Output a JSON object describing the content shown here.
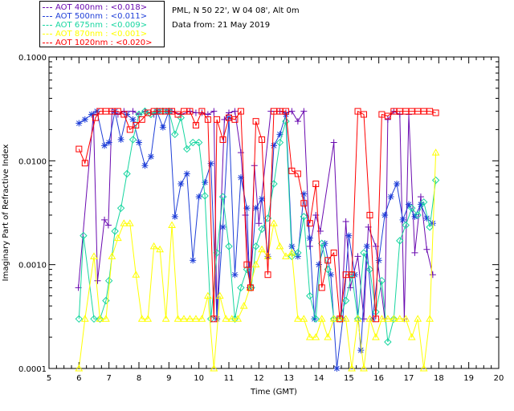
{
  "header": {
    "location": "PML, N 50 22', W 04 08', Alt 0m",
    "date_line": "Data from: 21 May 2019"
  },
  "legend": [
    {
      "label": "AOT  400nm : <0.018>",
      "color": "#6a0ab0"
    },
    {
      "label": "AOT  500nm : <0.011>",
      "color": "#1f3fd8"
    },
    {
      "label": "AOT  675nm : <0.009>",
      "color": "#17d6a0"
    },
    {
      "label": "AOT  870nm : <0.001>",
      "color": "#ffff00"
    },
    {
      "label": "AOT 1020nm : <0.020>",
      "color": "#ff0000"
    }
  ],
  "chart_data": {
    "type": "line",
    "xlabel": "Time (GMT)",
    "ylabel": "Imaginary Part of Refractive Index",
    "xlim": [
      5,
      20
    ],
    "ylim": [
      0.0001,
      0.1
    ],
    "yscale": "log",
    "xticks": [
      5,
      6,
      7,
      8,
      9,
      10,
      11,
      12,
      13,
      14,
      15,
      16,
      17,
      18,
      19,
      20
    ],
    "yticks": [
      0.0001,
      0.001,
      0.01,
      0.1
    ],
    "ytick_labels": [
      "0.0001",
      "0.0010",
      "0.0100",
      "0.1000"
    ],
    "series": [
      {
        "name": "400nm",
        "marker": "plus",
        "x": [
          5.98,
          6.48,
          6.62,
          6.85,
          6.98,
          7.1,
          7.3,
          7.5,
          7.8,
          8.0,
          8.2,
          8.5,
          8.7,
          8.9,
          9.1,
          9.4,
          9.7,
          9.9,
          10.1,
          10.3,
          10.5,
          10.6,
          10.85,
          11.0,
          11.2,
          11.4,
          11.55,
          11.7,
          11.85,
          12.0,
          12.4,
          12.7,
          12.9,
          13.1,
          13.3,
          13.5,
          13.7,
          13.9,
          14.05,
          14.5,
          14.75,
          14.9,
          15.05,
          15.3,
          15.5,
          15.65,
          15.9,
          16.2,
          16.3,
          16.5,
          16.7,
          16.85,
          17.0,
          17.2,
          17.4,
          17.6,
          17.8
        ],
        "y": [
          0.0006,
          0.028,
          0.0007,
          0.0027,
          0.0024,
          0.03,
          0.028,
          0.03,
          0.03,
          0.028,
          0.03,
          0.028,
          0.03,
          0.03,
          0.03,
          0.028,
          0.03,
          0.029,
          0.029,
          0.028,
          0.03,
          0.0003,
          0.025,
          0.029,
          0.03,
          0.012,
          0.003,
          0.0006,
          0.009,
          0.0025,
          0.03,
          0.03,
          0.029,
          0.03,
          0.024,
          0.03,
          0.0015,
          0.003,
          0.0021,
          0.015,
          0.0003,
          0.0026,
          0.0006,
          0.0012,
          0.0003,
          0.0023,
          0.0015,
          0.0003,
          0.025,
          0.03,
          0.028,
          0.0003,
          0.028,
          0.0013,
          0.0045,
          0.0014,
          0.0008
        ]
      },
      {
        "name": "500nm",
        "marker": "asterisk",
        "x": [
          6.0,
          6.2,
          6.42,
          6.6,
          6.85,
          7.0,
          7.2,
          7.4,
          7.6,
          7.8,
          8.0,
          8.2,
          8.4,
          8.6,
          8.8,
          9.0,
          9.2,
          9.4,
          9.6,
          9.8,
          10.0,
          10.2,
          10.4,
          10.6,
          10.8,
          11.0,
          11.2,
          11.4,
          11.6,
          11.7,
          11.9,
          12.1,
          12.3,
          12.5,
          12.7,
          12.9,
          13.1,
          13.3,
          13.5,
          13.7,
          13.85,
          14.0,
          14.2,
          14.4,
          14.6,
          14.8,
          15.0,
          15.2,
          15.4,
          15.6,
          15.8,
          16.0,
          16.2,
          16.4,
          16.6,
          16.8,
          17.0,
          17.2,
          17.4,
          17.6,
          17.8
        ],
        "y": [
          0.023,
          0.025,
          0.028,
          0.03,
          0.014,
          0.015,
          0.03,
          0.016,
          0.028,
          0.025,
          0.015,
          0.009,
          0.011,
          0.03,
          0.021,
          0.03,
          0.0029,
          0.006,
          0.0075,
          0.0011,
          0.0045,
          0.0062,
          0.0094,
          0.0003,
          0.0023,
          0.026,
          0.0008,
          0.0069,
          0.0035,
          0.0006,
          0.0035,
          0.0043,
          0.0012,
          0.014,
          0.018,
          0.028,
          0.0015,
          0.0012,
          0.0048,
          0.0018,
          0.0003,
          0.001,
          0.0016,
          0.0008,
          0.0001,
          0.0003,
          0.0019,
          0.0008,
          0.00015,
          0.0015,
          0.0003,
          0.0011,
          0.003,
          0.0045,
          0.006,
          0.0027,
          0.0038,
          0.0029,
          0.0038,
          0.0028,
          0.0025
        ]
      },
      {
        "name": "675nm",
        "marker": "diamond",
        "x": [
          6.0,
          6.15,
          6.5,
          6.7,
          6.9,
          7.0,
          7.2,
          7.4,
          7.6,
          7.8,
          8.0,
          8.2,
          8.4,
          8.6,
          8.8,
          9.0,
          9.2,
          9.4,
          9.6,
          9.8,
          10.0,
          10.2,
          10.4,
          10.6,
          10.8,
          11.0,
          11.2,
          11.4,
          11.6,
          11.75,
          11.9,
          12.1,
          12.3,
          12.5,
          12.7,
          12.9,
          13.1,
          13.3,
          13.5,
          13.7,
          13.9,
          14.1,
          14.3,
          14.5,
          14.7,
          14.9,
          15.1,
          15.3,
          15.5,
          15.7,
          15.9,
          16.1,
          16.3,
          16.5,
          16.7,
          16.9,
          17.1,
          17.3,
          17.5,
          17.7,
          17.9
        ],
        "y": [
          0.0003,
          0.0019,
          0.0003,
          0.0003,
          0.00045,
          0.0007,
          0.0021,
          0.0035,
          0.0075,
          0.016,
          0.028,
          0.03,
          0.028,
          0.03,
          0.03,
          0.03,
          0.018,
          0.026,
          0.013,
          0.015,
          0.015,
          0.0046,
          0.0003,
          0.0013,
          0.0045,
          0.0015,
          0.0003,
          0.0006,
          0.0009,
          0.0006,
          0.0015,
          0.0022,
          0.0028,
          0.006,
          0.015,
          0.024,
          0.0012,
          0.0013,
          0.0029,
          0.0005,
          0.0003,
          0.0016,
          0.0009,
          0.0003,
          0.0003,
          0.00045,
          0.0008,
          0.0003,
          0.0013,
          0.0009,
          0.00035,
          0.0007,
          0.00018,
          0.0003,
          0.0017,
          0.0024,
          0.0035,
          0.003,
          0.004,
          0.0023,
          0.0065
        ]
      },
      {
        "name": "870nm",
        "marker": "triangle",
        "x": [
          6.0,
          6.2,
          6.5,
          6.7,
          6.9,
          7.1,
          7.3,
          7.5,
          7.7,
          7.9,
          8.1,
          8.3,
          8.5,
          8.7,
          8.9,
          9.1,
          9.3,
          9.5,
          9.7,
          9.9,
          10.1,
          10.3,
          10.5,
          10.7,
          10.9,
          11.1,
          11.3,
          11.5,
          11.7,
          11.9,
          12.1,
          12.3,
          12.5,
          12.7,
          12.9,
          13.1,
          13.3,
          13.5,
          13.7,
          13.9,
          14.1,
          14.3,
          14.5,
          14.7,
          14.9,
          15.1,
          15.3,
          15.5,
          15.7,
          15.9,
          16.1,
          16.3,
          16.5,
          16.7,
          16.9,
          17.1,
          17.3,
          17.5,
          17.7,
          17.9
        ],
        "y": [
          0.0001,
          0.0003,
          0.0012,
          0.0003,
          0.0003,
          0.0012,
          0.0018,
          0.0025,
          0.0025,
          0.0008,
          0.0003,
          0.0003,
          0.0015,
          0.0014,
          0.0003,
          0.0024,
          0.0003,
          0.0003,
          0.0003,
          0.0003,
          0.0003,
          0.0005,
          0.0001,
          0.0005,
          0.0003,
          0.0003,
          0.0003,
          0.0004,
          0.0006,
          0.001,
          0.0014,
          0.0012,
          0.0025,
          0.0015,
          0.0012,
          0.0013,
          0.0003,
          0.0003,
          0.0002,
          0.0002,
          0.0003,
          0.0002,
          0.0003,
          0.0003,
          0.0003,
          0.0001,
          0.0003,
          0.0001,
          0.0003,
          0.0002,
          0.0003,
          0.0003,
          0.0003,
          0.0003,
          0.0003,
          0.0002,
          0.0003,
          0.0001,
          0.0003,
          0.012
        ]
      },
      {
        "name": "1020nm",
        "marker": "square",
        "x": [
          6.0,
          6.2,
          6.55,
          6.7,
          6.9,
          7.1,
          7.3,
          7.5,
          7.7,
          7.9,
          8.1,
          8.3,
          8.5,
          8.7,
          8.9,
          9.1,
          9.3,
          9.5,
          9.7,
          9.9,
          10.1,
          10.3,
          10.5,
          10.6,
          10.8,
          11.0,
          11.2,
          11.4,
          11.6,
          11.72,
          11.9,
          12.1,
          12.3,
          12.5,
          12.7,
          12.9,
          13.1,
          13.3,
          13.5,
          13.7,
          13.9,
          14.1,
          14.3,
          14.5,
          14.7,
          14.9,
          15.1,
          15.3,
          15.5,
          15.7,
          15.9,
          16.1,
          16.3,
          16.5,
          16.7,
          16.9,
          17.1,
          17.3,
          17.5,
          17.7,
          17.9
        ],
        "y": [
          0.013,
          0.0095,
          0.026,
          0.03,
          0.03,
          0.03,
          0.03,
          0.028,
          0.02,
          0.022,
          0.025,
          0.029,
          0.03,
          0.03,
          0.03,
          0.03,
          0.028,
          0.03,
          0.03,
          0.022,
          0.03,
          0.025,
          0.0003,
          0.025,
          0.016,
          0.026,
          0.025,
          0.03,
          0.001,
          0.0006,
          0.024,
          0.016,
          0.0008,
          0.03,
          0.03,
          0.03,
          0.008,
          0.0075,
          0.0039,
          0.0025,
          0.006,
          0.0006,
          0.0011,
          0.0013,
          0.0003,
          0.0008,
          0.0008,
          0.03,
          0.028,
          0.003,
          0.0003,
          0.028,
          0.027,
          0.03,
          0.03,
          0.03,
          0.03,
          0.03,
          0.03,
          0.03,
          0.029
        ]
      }
    ]
  }
}
